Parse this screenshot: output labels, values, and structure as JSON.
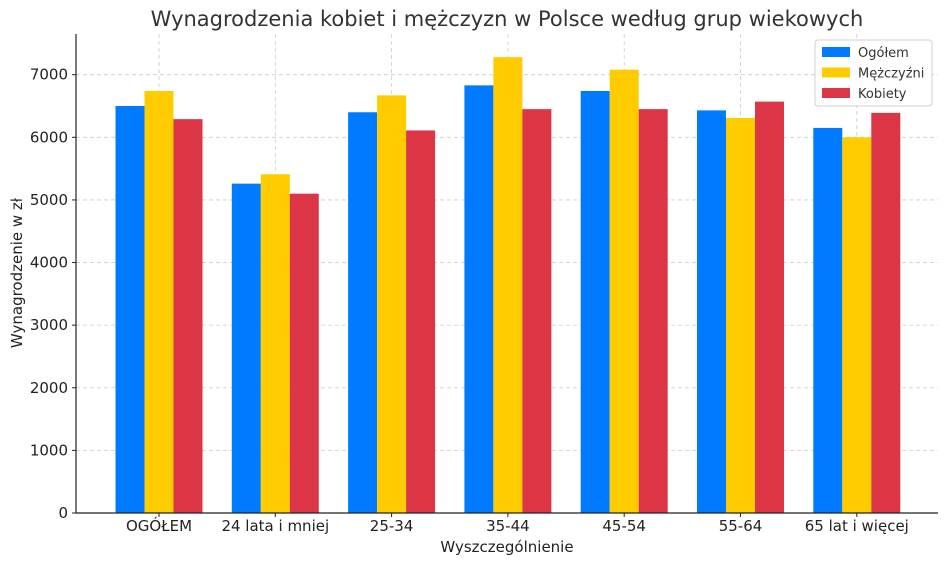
{
  "chart_data": {
    "type": "bar",
    "title": "Wynagrodzenia kobiet i mężczyzn w Polsce według grup wiekowych",
    "xlabel": "Wyszczególnienie",
    "ylabel": "Wynagrodzenie w zł",
    "ylim": [
      0,
      7650
    ],
    "yticks": [
      0,
      1000,
      2000,
      3000,
      4000,
      5000,
      6000,
      7000
    ],
    "grid": true,
    "legend_position": "top-right",
    "categories": [
      "OGÓŁEM",
      "24 lata i mniej",
      "25-34",
      "35-44",
      "45-54",
      "55-64",
      "65 lat i więcej"
    ],
    "series": [
      {
        "name": "Ogółem",
        "color": "#007bff",
        "values": [
          6500,
          5260,
          6400,
          6830,
          6740,
          6430,
          6150
        ]
      },
      {
        "name": "Mężczyźni",
        "color": "#ffcc00",
        "values": [
          6740,
          5410,
          6670,
          7280,
          7080,
          6310,
          6000
        ]
      },
      {
        "name": "Kobiety",
        "color": "#dc3545",
        "values": [
          6290,
          5100,
          6110,
          6450,
          6450,
          6570,
          6390
        ]
      }
    ]
  }
}
